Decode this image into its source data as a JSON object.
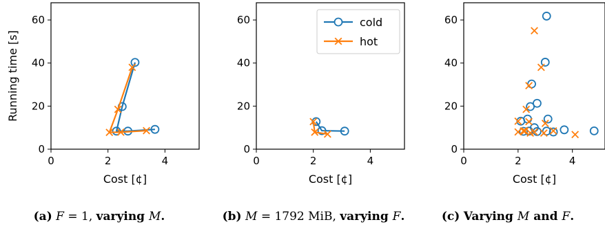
{
  "colors": {
    "cold": "#1f77b4",
    "hot": "#ff7f0e"
  },
  "legend": {
    "placement": "top-right",
    "panel": 1,
    "entries": [
      "cold",
      "hot"
    ]
  },
  "captions": [
    {
      "label": "(a)",
      "parts": [
        {
          "t": "F",
          "s": "ital"
        },
        {
          "t": " = 1, ",
          "s": "plain"
        },
        {
          "t": "varying ",
          "s": "bold"
        },
        {
          "t": "M",
          "s": "ital"
        },
        {
          "t": ".",
          "s": "bold"
        }
      ]
    },
    {
      "label": "(b)",
      "parts": [
        {
          "t": "M",
          "s": "ital"
        },
        {
          "t": " = 1792 MiB, ",
          "s": "plain"
        },
        {
          "t": "varying ",
          "s": "bold"
        },
        {
          "t": "F",
          "s": "ital"
        },
        {
          "t": ".",
          "s": "bold"
        }
      ]
    },
    {
      "label": "(c)",
      "parts": [
        {
          "t": "Varying ",
          "s": "bold"
        },
        {
          "t": "M",
          "s": "ital"
        },
        {
          "t": " and ",
          "s": "bold"
        },
        {
          "t": "F",
          "s": "ital"
        },
        {
          "t": ".",
          "s": "bold"
        }
      ]
    }
  ],
  "chart_data": [
    {
      "type": "line",
      "xlabel": "Cost [¢]",
      "ylabel": "Running time [s]",
      "xlim": [
        0,
        5.2
      ],
      "ylim": [
        0,
        68
      ],
      "xticks": [
        0,
        2,
        4
      ],
      "yticks": [
        0,
        20,
        40,
        60
      ],
      "grid": false,
      "series": [
        {
          "name": "cold",
          "marker": "circle",
          "line": true,
          "x": [
            2.95,
            2.5,
            2.3,
            2.7,
            3.65
          ],
          "y": [
            40.3,
            19.8,
            8.4,
            8.4,
            9.2
          ]
        },
        {
          "name": "hot",
          "marker": "x",
          "line": true,
          "x": [
            2.85,
            2.35,
            2.05,
            2.45,
            3.35
          ],
          "y": [
            38.0,
            18.5,
            7.8,
            7.9,
            8.6
          ]
        }
      ]
    },
    {
      "type": "line",
      "xlabel": "Cost [¢]",
      "ylabel": "",
      "xlim": [
        0,
        5.2
      ],
      "ylim": [
        0,
        68
      ],
      "xticks": [
        0,
        2,
        4
      ],
      "yticks": [
        0,
        20,
        40,
        60
      ],
      "grid": false,
      "series": [
        {
          "name": "cold",
          "marker": "circle",
          "line": true,
          "x": [
            2.1,
            2.3,
            3.1
          ],
          "y": [
            12.8,
            8.6,
            8.4
          ]
        },
        {
          "name": "hot",
          "marker": "x",
          "line": true,
          "x": [
            2.0,
            2.05,
            2.5
          ],
          "y": [
            12.8,
            7.9,
            7.0
          ]
        }
      ]
    },
    {
      "type": "scatter",
      "xlabel": "Cost [¢]",
      "ylabel": "",
      "xlim": [
        0,
        5.2
      ],
      "ylim": [
        0,
        68
      ],
      "xticks": [
        0,
        2,
        4
      ],
      "yticks": [
        0,
        20,
        40,
        60
      ],
      "grid": false,
      "series": [
        {
          "name": "cold",
          "marker": "circle",
          "line": false,
          "x": [
            3.05,
            3.0,
            2.5,
            2.7,
            2.45,
            2.35,
            3.1,
            2.1,
            2.6,
            3.7,
            3.3,
            4.8,
            3.05,
            2.4,
            2.7,
            2.2
          ],
          "y": [
            61.8,
            40.4,
            30.3,
            21.3,
            19.8,
            14.0,
            14.0,
            13.0,
            10.0,
            9.0,
            8.0,
            8.5,
            8.4,
            8.4,
            8.2,
            8.3
          ]
        },
        {
          "name": "hot",
          "marker": "x",
          "line": false,
          "x": [
            2.6,
            2.85,
            2.4,
            2.3,
            2.0,
            2.4,
            3.0,
            2.0,
            2.25,
            2.45,
            2.6,
            2.95,
            3.3,
            4.1,
            2.2
          ],
          "y": [
            55.0,
            38.0,
            29.5,
            18.5,
            13.0,
            12.8,
            12.0,
            8.0,
            8.5,
            7.5,
            8.0,
            7.5,
            8.5,
            6.8,
            8.5
          ]
        }
      ]
    }
  ]
}
